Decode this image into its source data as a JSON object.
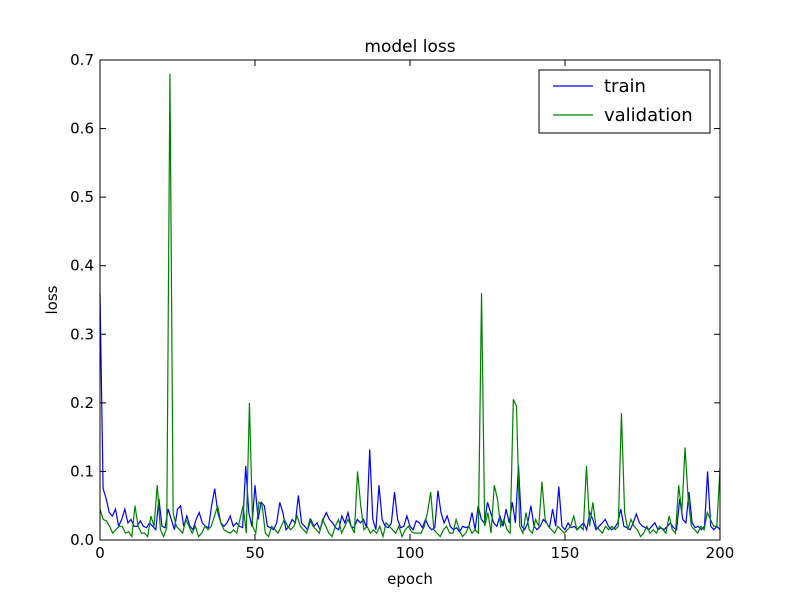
{
  "chart_data": {
    "type": "line",
    "title": "model loss",
    "xlabel": "epoch",
    "ylabel": "loss",
    "xlim": [
      0,
      200
    ],
    "ylim": [
      0,
      0.7
    ],
    "x_ticks": [
      "0",
      "50",
      "100",
      "150",
      "200"
    ],
    "y_ticks": [
      "0.0",
      "0.1",
      "0.2",
      "0.3",
      "0.4",
      "0.5",
      "0.6",
      "0.7"
    ],
    "legend_position": "top-right",
    "series": [
      {
        "name": "train",
        "color": "#0000ff",
        "values": [
          0.36,
          0.075,
          0.06,
          0.04,
          0.035,
          0.045,
          0.02,
          0.03,
          0.045,
          0.025,
          0.03,
          0.02,
          0.02,
          0.028,
          0.02,
          0.018,
          0.025,
          0.02,
          0.015,
          0.06,
          0.02,
          0.018,
          0.045,
          0.03,
          0.015,
          0.045,
          0.05,
          0.02,
          0.035,
          0.02,
          0.015,
          0.03,
          0.04,
          0.025,
          0.02,
          0.018,
          0.05,
          0.075,
          0.04,
          0.025,
          0.02,
          0.025,
          0.035,
          0.02,
          0.025,
          0.02,
          0.018,
          0.108,
          0.04,
          0.02,
          0.08,
          0.03,
          0.055,
          0.05,
          0.02,
          0.018,
          0.015,
          0.025,
          0.055,
          0.04,
          0.015,
          0.02,
          0.03,
          0.025,
          0.065,
          0.025,
          0.02,
          0.015,
          0.03,
          0.02,
          0.025,
          0.015,
          0.03,
          0.04,
          0.03,
          0.025,
          0.018,
          0.015,
          0.035,
          0.025,
          0.04,
          0.02,
          0.018,
          0.03,
          0.025,
          0.03,
          0.018,
          0.132,
          0.03,
          0.015,
          0.08,
          0.03,
          0.02,
          0.018,
          0.025,
          0.07,
          0.03,
          0.018,
          0.02,
          0.035,
          0.02,
          0.015,
          0.028,
          0.025,
          0.018,
          0.03,
          0.02,
          0.015,
          0.018,
          0.072,
          0.04,
          0.025,
          0.035,
          0.02,
          0.015,
          0.018,
          0.012,
          0.02,
          0.018,
          0.02,
          0.04,
          0.015,
          0.05,
          0.03,
          0.025,
          0.055,
          0.04,
          0.025,
          0.02,
          0.035,
          0.02,
          0.045,
          0.025,
          0.055,
          0.025,
          0.108,
          0.02,
          0.015,
          0.025,
          0.05,
          0.02,
          0.015,
          0.02,
          0.03,
          0.025,
          0.018,
          0.045,
          0.02,
          0.078,
          0.02,
          0.015,
          0.025,
          0.018,
          0.02,
          0.015,
          0.02,
          0.025,
          0.015,
          0.04,
          0.03,
          0.015,
          0.02,
          0.025,
          0.03,
          0.02,
          0.015,
          0.018,
          0.025,
          0.045,
          0.02,
          0.018,
          0.015,
          0.025,
          0.038,
          0.025,
          0.02,
          0.018,
          0.015,
          0.02,
          0.025,
          0.015,
          0.018,
          0.015,
          0.02,
          0.025,
          0.018,
          0.015,
          0.06,
          0.03,
          0.025,
          0.07,
          0.025,
          0.018,
          0.02,
          0.015,
          0.02,
          0.1,
          0.02,
          0.015,
          0.02,
          0.015
        ]
      },
      {
        "name": "validation",
        "color": "#008000",
        "values": [
          0.045,
          0.03,
          0.028,
          0.02,
          0.01,
          0.015,
          0.02,
          0.02,
          0.01,
          0.012,
          0.005,
          0.05,
          0.02,
          0.01,
          0.01,
          0.005,
          0.035,
          0.02,
          0.08,
          0.015,
          0.005,
          0.018,
          0.68,
          0.04,
          0.02,
          0.015,
          0.01,
          0.03,
          0.02,
          0.01,
          0.02,
          0.005,
          0.01,
          0.02,
          0.015,
          0.02,
          0.035,
          0.05,
          0.025,
          0.015,
          0.012,
          0.01,
          0.015,
          0.01,
          0.03,
          0.05,
          0.01,
          0.2,
          0.02,
          0.01,
          0.055,
          0.05,
          0.01,
          0.005,
          0.02,
          0.015,
          0.01,
          0.02,
          0.03,
          0.02,
          0.015,
          0.02,
          0.035,
          0.02,
          0.015,
          0.01,
          0.03,
          0.02,
          0.015,
          0.01,
          0.03,
          0.02,
          0.01,
          0.005,
          0.02,
          0.03,
          0.01,
          0.02,
          0.03,
          0.02,
          0.01,
          0.1,
          0.05,
          0.015,
          0.02,
          0.01,
          0.015,
          0.01,
          0.02,
          0.005,
          0.025,
          0.02,
          0.015,
          0.01,
          0.02,
          0.005,
          0.015,
          0.02,
          0.012,
          0.01,
          0.01,
          0.01,
          0.02,
          0.04,
          0.07,
          0.015,
          0.01,
          0.005,
          0.015,
          0.02,
          0.01,
          0.01,
          0.03,
          0.015,
          0.005,
          0.01,
          0.02,
          0.01,
          0.015,
          0.01,
          0.36,
          0.02,
          0.04,
          0.01,
          0.08,
          0.06,
          0.02,
          0.03,
          0.015,
          0.01,
          0.205,
          0.195,
          0.02,
          0.01,
          0.04,
          0.015,
          0.01,
          0.03,
          0.02,
          0.085,
          0.03,
          0.02,
          0.015,
          0.01,
          0.02,
          0.015,
          0.01,
          0.015,
          0.02,
          0.035,
          0.015,
          0.02,
          0.015,
          0.108,
          0.02,
          0.055,
          0.02,
          0.015,
          0.01,
          0.02,
          0.015,
          0.02,
          0.015,
          0.02,
          0.185,
          0.04,
          0.015,
          0.03,
          0.02,
          0.015,
          0.005,
          0.01,
          0.02,
          0.01,
          0.015,
          0.01,
          0.02,
          0.015,
          0.01,
          0.035,
          0.015,
          0.01,
          0.08,
          0.04,
          0.135,
          0.06,
          0.02,
          0.015,
          0.01,
          0.02,
          0.015,
          0.04,
          0.03,
          0.02,
          0.02,
          0.105
        ]
      }
    ]
  }
}
